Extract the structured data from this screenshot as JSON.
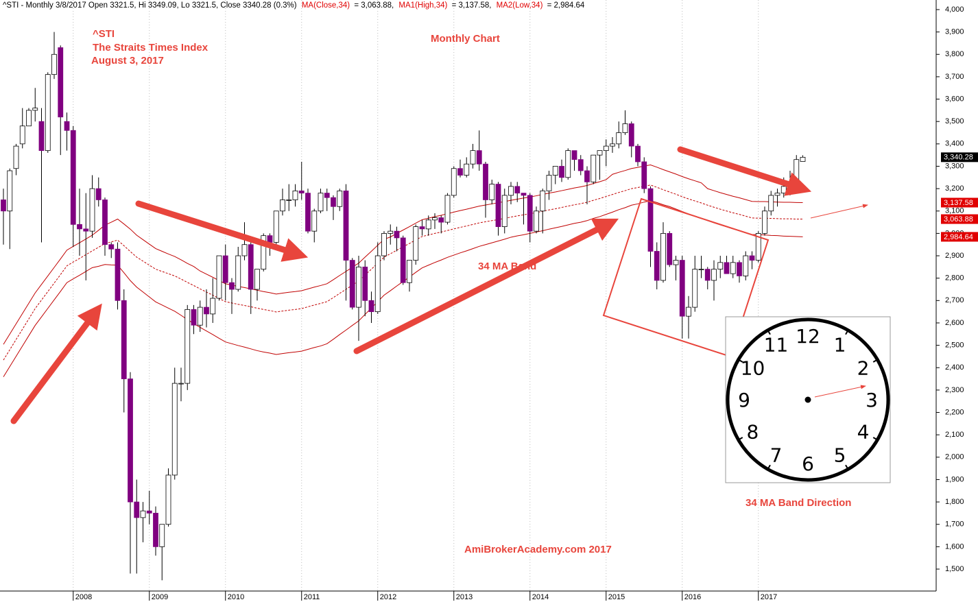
{
  "chart_data": {
    "type": "candlestick",
    "header": "^STI - Monthly 3/8/2017 Open 3321.5, Hi 3349.09, Lo 3321.5, Close 3340.28 (0.3%)",
    "header_values": [
      "= 3,063.88,",
      "= 3,137.58,",
      "= 2,984.64"
    ],
    "annotations": {
      "symbol": "^STI",
      "name": "The Straits Times Index",
      "date": "August 3, 2017",
      "period": "Monthly Chart",
      "band": "34 MA Band",
      "direction": "34 MA Band Direction",
      "credit": "AmiBrokerAcademy.com  2017"
    },
    "categories": [
      null,
      null,
      null,
      null,
      null,
      null,
      null,
      null,
      null,
      null,
      null,
      "2008",
      null,
      null,
      null,
      null,
      null,
      null,
      null,
      null,
      null,
      null,
      null,
      "2009",
      null,
      null,
      null,
      null,
      null,
      null,
      null,
      null,
      null,
      null,
      null,
      "2010",
      null,
      null,
      null,
      null,
      null,
      null,
      null,
      null,
      null,
      null,
      null,
      "2011",
      null,
      null,
      null,
      null,
      null,
      null,
      null,
      null,
      null,
      null,
      null,
      "2012",
      null,
      null,
      null,
      null,
      null,
      null,
      null,
      null,
      null,
      null,
      null,
      "2013",
      null,
      null,
      null,
      null,
      null,
      null,
      null,
      null,
      null,
      null,
      null,
      "2014",
      null,
      null,
      null,
      null,
      null,
      null,
      null,
      null,
      null,
      null,
      null,
      "2015",
      null,
      null,
      null,
      null,
      null,
      null,
      null,
      null,
      null,
      null,
      null,
      "2016",
      null,
      null,
      null,
      null,
      null,
      null,
      null,
      null,
      null,
      null,
      null,
      "2017",
      null,
      null,
      null,
      null,
      null,
      null,
      null
    ],
    "open": [
      3150,
      3100,
      3290,
      3400,
      3480,
      3550,
      3500,
      3370,
      3710,
      3830,
      3500,
      3460,
      3040,
      3020,
      3010,
      3200,
      3150,
      2950,
      2930,
      2700,
      2350,
      1800,
      1730,
      1760,
      1750,
      1600,
      1700,
      1920,
      2330,
      2330,
      2660,
      2590,
      2670,
      2640,
      2710,
      2900,
      2780,
      2750,
      2900,
      2950,
      2750,
      2840,
      2990,
      2960,
      3100,
      3150,
      3150,
      3190,
      3180,
      3010,
      3100,
      3180,
      3160,
      3120,
      3190,
      2880,
      2670,
      2850,
      2700,
      2650,
      2900,
      3000,
      3010,
      2980,
      2780,
      2880,
      3030,
      3020,
      3060,
      3070,
      3050,
      3170,
      3290,
      3260,
      3310,
      3370,
      3310,
      3150,
      3220,
      3030,
      3170,
      3210,
      3180,
      3170,
      3010,
      3100,
      3190,
      3260,
      3300,
      3250,
      3370,
      3330,
      3280,
      3230,
      3350,
      3370,
      3390,
      3400,
      3450,
      3490,
      3390,
      3320,
      3200,
      2920,
      2790,
      3000,
      2860,
      2880,
      2630,
      2670,
      2840,
      2840,
      2790,
      2840,
      2870,
      2820,
      2870,
      2810,
      2900,
      2880,
      3000,
      3100,
      3170,
      3180,
      3210,
      3230,
      3321.5
    ],
    "high": [
      3200,
      3290,
      3400,
      3560,
      3560,
      3650,
      3560,
      3720,
      3900,
      3840,
      3540,
      3480,
      3200,
      3180,
      3260,
      3250,
      3160,
      2960,
      2960,
      2750,
      2380,
      1900,
      1800,
      1850,
      1780,
      1700,
      1950,
      2400,
      2400,
      2680,
      2680,
      2700,
      2750,
      2800,
      2900,
      2950,
      2800,
      2940,
      3050,
      2960,
      2840,
      3000,
      3000,
      3100,
      3200,
      3220,
      3220,
      3320,
      3200,
      3110,
      3200,
      3200,
      3170,
      3200,
      3220,
      2890,
      2900,
      2880,
      2740,
      2960,
      3010,
      3040,
      3030,
      2990,
      2880,
      3040,
      3060,
      3080,
      3090,
      3080,
      3180,
      3300,
      3330,
      3340,
      3400,
      3460,
      3320,
      3240,
      3230,
      3200,
      3230,
      3230,
      3180,
      3180,
      3120,
      3200,
      3280,
      3300,
      3330,
      3380,
      3370,
      3350,
      3300,
      3350,
      3370,
      3420,
      3430,
      3500,
      3550,
      3500,
      3400,
      3340,
      3210,
      2960,
      3050,
      3010,
      2900,
      2900,
      2720,
      2900,
      2900,
      2850,
      2880,
      2900,
      2900,
      2900,
      2880,
      2920,
      2920,
      3010,
      3120,
      3190,
      3200,
      3250,
      3280,
      3350,
      3349.09
    ],
    "low": [
      2950,
      2930,
      3260,
      3380,
      3480,
      3500,
      2960,
      3360,
      3690,
      3350,
      3370,
      2940,
      2900,
      2790,
      2980,
      3120,
      2900,
      2890,
      2660,
      2200,
      1480,
      1480,
      1620,
      1700,
      1560,
      1450,
      1690,
      1900,
      2250,
      2300,
      2550,
      2560,
      2580,
      2600,
      2700,
      2700,
      2640,
      2740,
      2880,
      2640,
      2700,
      2830,
      2900,
      2950,
      3080,
      3100,
      3120,
      3150,
      3000,
      2960,
      3090,
      3100,
      3060,
      3100,
      2700,
      2660,
      2520,
      2630,
      2600,
      2640,
      2880,
      2950,
      2920,
      2770,
      2740,
      2860,
      2990,
      2990,
      3020,
      3000,
      3040,
      3160,
      3250,
      3250,
      3290,
      3280,
      3070,
      3130,
      2990,
      3000,
      3130,
      3140,
      3040,
      2960,
      3000,
      3000,
      3150,
      3220,
      3230,
      3240,
      3280,
      3260,
      3130,
      3220,
      3240,
      3300,
      3360,
      3380,
      3440,
      3340,
      3300,
      3180,
      2850,
      2750,
      2780,
      2850,
      2790,
      2530,
      2530,
      2650,
      2800,
      2750,
      2700,
      2800,
      2830,
      2800,
      2780,
      2790,
      2840,
      2870,
      2990,
      3080,
      3120,
      3160,
      3170,
      3220,
      3321.5
    ],
    "close": [
      3100,
      3280,
      3390,
      3480,
      3550,
      3560,
      3370,
      3710,
      3800,
      3520,
      3460,
      3040,
      3020,
      3010,
      3200,
      3150,
      2950,
      2930,
      2700,
      2350,
      1800,
      1730,
      1760,
      1750,
      1600,
      1700,
      1920,
      2330,
      2330,
      2660,
      2590,
      2670,
      2640,
      2710,
      2900,
      2780,
      2750,
      2900,
      2950,
      2750,
      2840,
      2990,
      2960,
      3100,
      3150,
      3150,
      3190,
      3180,
      3010,
      3100,
      3180,
      3160,
      3120,
      3190,
      2880,
      2670,
      2850,
      2700,
      2650,
      2900,
      3000,
      3010,
      2980,
      2780,
      2880,
      3030,
      3020,
      3060,
      3070,
      3050,
      3170,
      3290,
      3260,
      3310,
      3370,
      3310,
      3150,
      3220,
      3030,
      3170,
      3210,
      3180,
      3170,
      3010,
      3100,
      3190,
      3260,
      3300,
      3250,
      3370,
      3330,
      3280,
      3230,
      3350,
      3370,
      3390,
      3400,
      3450,
      3490,
      3390,
      3320,
      3200,
      2920,
      2790,
      3000,
      2860,
      2880,
      2630,
      2670,
      2840,
      2840,
      2790,
      2840,
      2870,
      2820,
      2870,
      2810,
      2900,
      2880,
      3000,
      3100,
      3170,
      3180,
      3210,
      3230,
      3330,
      3340.28
    ],
    "up_color": "#ffffff",
    "down_color": "#800080",
    "last_label": "3,340.28",
    "series": [
      {
        "name": "MA(Close,34)",
        "color": "#c00000",
        "dashed": true,
        "last_label": "3,063.88",
        "values": [
          2434,
          2480,
          2526,
          2572,
          2618,
          2664,
          2702,
          2740,
          2778,
          2816,
          2855,
          2872,
          2888,
          2905,
          2922,
          2938,
          2955,
          2962,
          2970,
          2945,
          2919,
          2894,
          2876,
          2858,
          2840,
          2830,
          2820,
          2810,
          2796,
          2781,
          2767,
          2752,
          2738,
          2724,
          2709,
          2695,
          2689,
          2683,
          2678,
          2672,
          2666,
          2660,
          2655,
          2649,
          2653,
          2657,
          2660,
          2664,
          2672,
          2680,
          2687,
          2695,
          2713,
          2732,
          2750,
          2769,
          2787,
          2814,
          2840,
          2867,
          2894,
          2909,
          2925,
          2940,
          2955,
          2971,
          2986,
          2993,
          3000,
          3006,
          3013,
          3020,
          3027,
          3033,
          3040,
          3047,
          3052,
          3057,
          3062,
          3067,
          3073,
          3078,
          3083,
          3088,
          3093,
          3099,
          3105,
          3110,
          3116,
          3122,
          3128,
          3133,
          3139,
          3148,
          3156,
          3165,
          3174,
          3183,
          3191,
          3200,
          3205,
          3211,
          3216,
          3206,
          3195,
          3185,
          3175,
          3164,
          3154,
          3145,
          3136,
          3126,
          3117,
          3108,
          3100,
          3092,
          3085,
          3077,
          3069,
          3068,
          3068,
          3067,
          3066,
          3065,
          3065,
          3064,
          3063.88
        ]
      },
      {
        "name": "MA1(High,34)",
        "color": "#c00000",
        "dashed": false,
        "last_label": "3,137.58",
        "values": [
          2504,
          2550,
          2596,
          2642,
          2688,
          2734,
          2772,
          2810,
          2848,
          2886,
          2925,
          2942,
          2958,
          2975,
          2992,
          3014,
          3037,
          3050,
          3064,
          3042,
          3019,
          2992,
          2972,
          2952,
          2932,
          2920,
          2908,
          2897,
          2882,
          2866,
          2852,
          2832,
          2818,
          2804,
          2789,
          2775,
          2769,
          2763,
          2758,
          2752,
          2746,
          2740,
          2735,
          2729,
          2733,
          2737,
          2740,
          2744,
          2752,
          2760,
          2767,
          2775,
          2793,
          2812,
          2830,
          2849,
          2867,
          2894,
          2920,
          2947,
          2974,
          2984,
          3000,
          3015,
          3030,
          3046,
          3061,
          3068,
          3075,
          3081,
          3088,
          3095,
          3102,
          3108,
          3115,
          3122,
          3127,
          3132,
          3137,
          3142,
          3148,
          3153,
          3158,
          3163,
          3168,
          3174,
          3180,
          3185,
          3191,
          3197,
          3203,
          3208,
          3214,
          3223,
          3231,
          3240,
          3264,
          3273,
          3281,
          3290,
          3295,
          3301,
          3306,
          3296,
          3285,
          3275,
          3265,
          3254,
          3244,
          3235,
          3226,
          3200,
          3191,
          3182,
          3174,
          3166,
          3159,
          3151,
          3143,
          3142,
          3142,
          3141,
          3140,
          3139,
          3139,
          3138,
          3137.58
        ]
      },
      {
        "name": "MA2(Low,34)",
        "color": "#c00000",
        "dashed": false,
        "last_label": "2,984.64",
        "values": [
          2359,
          2405,
          2451,
          2497,
          2543,
          2589,
          2627,
          2665,
          2703,
          2741,
          2780,
          2797,
          2813,
          2830,
          2847,
          2853,
          2861,
          2859,
          2858,
          2824,
          2789,
          2760,
          2738,
          2716,
          2694,
          2680,
          2666,
          2652,
          2634,
          2615,
          2597,
          2580,
          2564,
          2548,
          2531,
          2515,
          2507,
          2499,
          2492,
          2484,
          2476,
          2470,
          2465,
          2459,
          2463,
          2467,
          2470,
          2474,
          2482,
          2490,
          2497,
          2507,
          2527,
          2548,
          2568,
          2589,
          2609,
          2638,
          2666,
          2695,
          2724,
          2744,
          2765,
          2785,
          2805,
          2826,
          2846,
          2858,
          2870,
          2881,
          2893,
          2903,
          2913,
          2922,
          2932,
          2942,
          2950,
          2958,
          2966,
          2974,
          2983,
          2989,
          2994,
          3000,
          3006,
          3012,
          3019,
          3025,
          3031,
          3038,
          3045,
          3050,
          3057,
          3067,
          3075,
          3085,
          3095,
          3106,
          3115,
          3126,
          3132,
          3140,
          3146,
          3138,
          3128,
          3120,
          3109,
          3098,
          3087,
          3077,
          3068,
          3057,
          3047,
          3038,
          3029,
          3020,
          3013,
          3004,
          2995,
          2994,
          2993,
          2991,
          2990,
          2988,
          2987,
          2986,
          2984.64
        ]
      }
    ],
    "ylim": [
      1450,
      4020
    ],
    "yticks": [
      {
        "value": 1500,
        "label": "1,500"
      },
      {
        "value": 1600,
        "label": "1,600"
      },
      {
        "value": 1700,
        "label": "1,700"
      },
      {
        "value": 1800,
        "label": "1,800"
      },
      {
        "value": 1900,
        "label": "1,900"
      },
      {
        "value": 2000,
        "label": "2,000"
      },
      {
        "value": 2100,
        "label": "2,100"
      },
      {
        "value": 2200,
        "label": "2,200"
      },
      {
        "value": 2300,
        "label": "2,300"
      },
      {
        "value": 2400,
        "label": "2,400"
      },
      {
        "value": 2500,
        "label": "2,500"
      },
      {
        "value": 2600,
        "label": "2,600"
      },
      {
        "value": 2700,
        "label": "2,700"
      },
      {
        "value": 2800,
        "label": "2,800"
      },
      {
        "value": 2900,
        "label": "2,900"
      },
      {
        "value": 3000,
        "label": "3,000"
      },
      {
        "value": 3100,
        "label": "3,100"
      },
      {
        "value": 3200,
        "label": "3,200"
      },
      {
        "value": 3300,
        "label": "3,300"
      },
      {
        "value": 3400,
        "label": "3,400"
      },
      {
        "value": 3500,
        "label": "3,500"
      },
      {
        "value": 3600,
        "label": "3,600"
      },
      {
        "value": 3700,
        "label": "3,700"
      },
      {
        "value": 3800,
        "label": "3,800"
      },
      {
        "value": 3900,
        "label": "3,900"
      },
      {
        "value": 4000,
        "label": "4,000"
      }
    ],
    "clock_numbers": [
      "12",
      "1",
      "2",
      "3",
      "4",
      "5",
      "6",
      "7",
      "8",
      "9",
      "10",
      "11"
    ]
  }
}
